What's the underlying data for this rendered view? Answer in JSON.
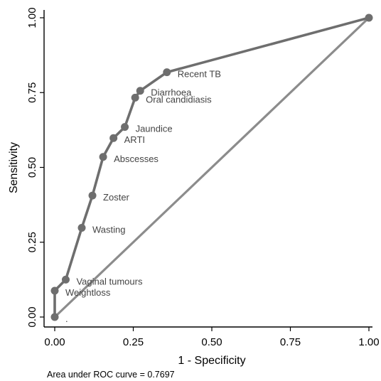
{
  "chart_data": {
    "type": "line",
    "xlabel": "1 - Specificity",
    "ylabel": "Sensitivity",
    "xlim": [
      0,
      1
    ],
    "ylim": [
      0,
      1
    ],
    "x_ticks": [
      0,
      0.25,
      0.5,
      0.75,
      1
    ],
    "y_ticks": [
      0,
      0.25,
      0.5,
      0.75,
      1
    ],
    "x_tick_labels": [
      "0.00",
      "0.25",
      "0.50",
      "0.75",
      "1.00"
    ],
    "y_tick_labels": [
      "0.00",
      "0.25",
      "0.50",
      "0.75",
      "1.00"
    ],
    "grid": false,
    "reference_line": {
      "x": [
        0,
        1
      ],
      "y": [
        0,
        1
      ],
      "color": "#8c8c8c"
    },
    "series": [
      {
        "color": "#6e6e6e",
        "points": [
          {
            "x": 0.0,
            "y": 0.0,
            "label": "."
          },
          {
            "x": 0.0,
            "y": 0.088,
            "label": "Weightloss"
          },
          {
            "x": 0.035,
            "y": 0.125,
            "label": "Vaginal tumours"
          },
          {
            "x": 0.086,
            "y": 0.298,
            "label": "Wasting"
          },
          {
            "x": 0.12,
            "y": 0.406,
            "label": "Zoster"
          },
          {
            "x": 0.154,
            "y": 0.535,
            "label": "Abscesses"
          },
          {
            "x": 0.187,
            "y": 0.598,
            "label": "ARTI"
          },
          {
            "x": 0.223,
            "y": 0.635,
            "label": "Jaundice"
          },
          {
            "x": 0.256,
            "y": 0.733,
            "label": "Oral candidiasis"
          },
          {
            "x": 0.272,
            "y": 0.756,
            "label": "Diarrhoea"
          },
          {
            "x": 0.357,
            "y": 0.818,
            "label": "Recent TB"
          },
          {
            "x": 1.0,
            "y": 1.0,
            "label": ""
          }
        ]
      }
    ],
    "annotation": "Area under ROC curve = 0.7697"
  }
}
